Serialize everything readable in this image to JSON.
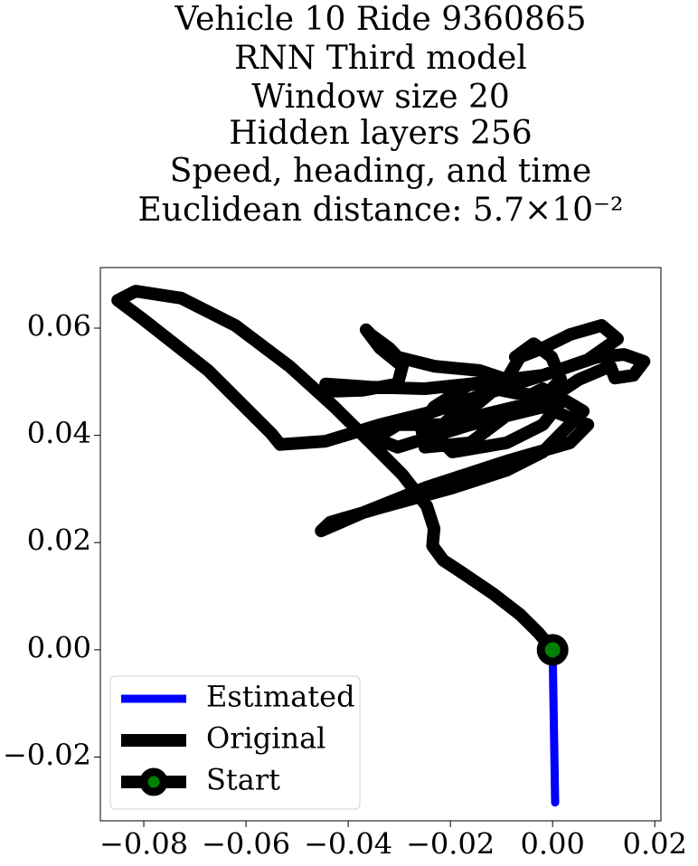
{
  "chart_data": {
    "type": "line",
    "title": [
      "Vehicle 10 Ride 9360865",
      "RNN Third model",
      "Window size 20",
      "Hidden layers 256",
      "Speed, heading, and time",
      "Euclidean distance: 5.7×10⁻²"
    ],
    "xlim": [
      -0.0885,
      0.0212
    ],
    "ylim": [
      -0.0319,
      0.0713
    ],
    "xticks": [
      {
        "value": -0.08,
        "label": "−0.08"
      },
      {
        "value": -0.06,
        "label": "−0.06"
      },
      {
        "value": -0.04,
        "label": "−0.04"
      },
      {
        "value": -0.02,
        "label": "−0.02"
      },
      {
        "value": 0,
        "label": "0.00"
      },
      0.02
    ],
    "yticks": [
      {
        "value": -0.02,
        "label": "−0.02"
      },
      {
        "value": 0,
        "label": "0.00"
      },
      0.02,
      0.04,
      0.06
    ],
    "legend": "lower left",
    "series": [
      {
        "name": "Estimated",
        "color": "blue",
        "x": [
          0,
          0.0005
        ],
        "y": [
          0,
          -0.0285
        ]
      },
      {
        "name": "Original",
        "color": "black",
        "x": [
          0,
          -0.0028,
          -0.0064,
          -0.0117,
          -0.0179,
          -0.0214,
          -0.0235,
          -0.0232,
          -0.0246,
          -0.0294,
          -0.0356,
          -0.0427,
          -0.0515,
          -0.0621,
          -0.0727,
          -0.0816,
          -0.0851,
          -0.0798,
          -0.0674,
          -0.055,
          -0.0533,
          -0.0444,
          -0.0338,
          -0.0232,
          -0.0126,
          -0.0019,
          0.0069,
          0.0127,
          0.0096,
          0.0034,
          -0.0019,
          -0.0064,
          -0.009,
          -0.0055,
          -0.0019,
          0.0016,
          -0.0019,
          -0.009,
          -0.0196,
          -0.0232,
          -0.0196,
          -0.0143,
          -0.009,
          -0.0143,
          -0.0232,
          -0.0303,
          -0.032,
          -0.0356,
          -0.0365,
          -0.0338,
          -0.0294,
          -0.0303,
          -0.0373,
          -0.0444,
          -0.0444,
          -0.0356,
          -0.025,
          -0.0161,
          -0.0019,
          0.0087,
          0.014,
          0.0179,
          0.0158,
          0.0122,
          0.0113,
          0.0051,
          -0.0002,
          -0.0073,
          -0.0143,
          -0.0196,
          -0.0303,
          -0.0347,
          -0.0303,
          -0.0161,
          -0.0019,
          0.0069,
          0.0034,
          -0.009,
          -0.025,
          -0.0373,
          -0.0453,
          -0.0435,
          -0.0338,
          -0.0196,
          -0.009,
          -0.0019,
          0.0016,
          0.006,
          0.0016,
          -0.0073,
          -0.0161,
          -0.0232,
          -0.0258,
          -0.025,
          -0.0161,
          -0.009,
          -0.0019,
          0.0016,
          -0.0002,
          -0.0037,
          -0.0073
        ],
        "y": [
          0,
          0.0032,
          0.0066,
          0.0105,
          0.0145,
          0.0167,
          0.0194,
          0.0226,
          0.0268,
          0.0327,
          0.0386,
          0.0453,
          0.0529,
          0.0605,
          0.0656,
          0.0669,
          0.0652,
          0.0614,
          0.0521,
          0.0403,
          0.0383,
          0.0389,
          0.042,
          0.0445,
          0.0479,
          0.0512,
          0.0541,
          0.058,
          0.0605,
          0.0588,
          0.0563,
          0.0546,
          0.0504,
          0.047,
          0.0487,
          0.0462,
          0.042,
          0.0386,
          0.0369,
          0.0403,
          0.0437,
          0.0462,
          0.0504,
          0.0521,
          0.0529,
          0.0546,
          0.0563,
          0.0588,
          0.0597,
          0.0563,
          0.0529,
          0.0496,
          0.0484,
          0.0482,
          0.0496,
          0.049,
          0.0487,
          0.0496,
          0.0512,
          0.0546,
          0.0551,
          0.0538,
          0.0512,
          0.0507,
          0.0529,
          0.0504,
          0.047,
          0.0453,
          0.0437,
          0.042,
          0.042,
          0.0394,
          0.0378,
          0.042,
          0.0453,
          0.042,
          0.0386,
          0.0352,
          0.0302,
          0.0255,
          0.0222,
          0.0238,
          0.0265,
          0.0302,
          0.0335,
          0.0369,
          0.0403,
          0.0445,
          0.047,
          0.0479,
          0.0496,
          0.0453,
          0.042,
          0.0378,
          0.0386,
          0.0437,
          0.047,
          0.0504,
          0.0546,
          0.0571,
          0.0546
        ]
      },
      {
        "name": "Start",
        "color": "black",
        "marker_color": "green",
        "x": [
          0
        ],
        "y": [
          0
        ]
      }
    ]
  }
}
